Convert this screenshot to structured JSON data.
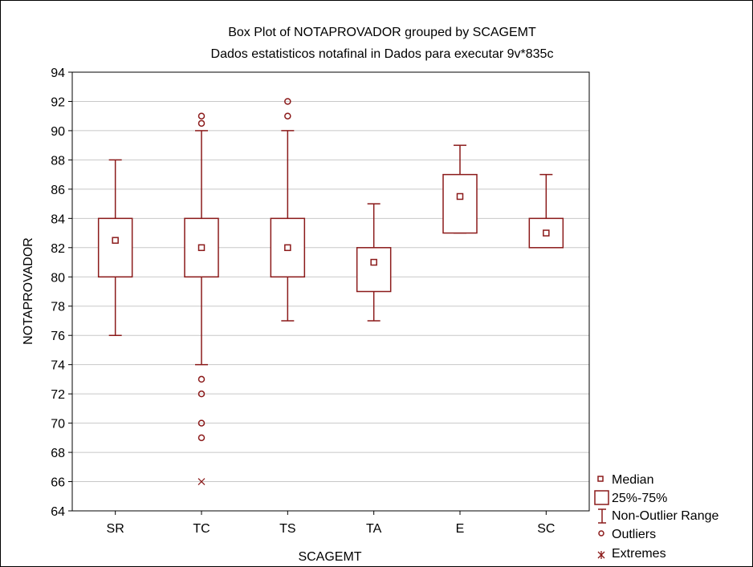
{
  "chart_data": {
    "type": "box",
    "title": "Box Plot of NOTAPROVADOR grouped by  SCAGEMT",
    "subtitle": "Dados estatisticos notafinal in Dados para executar 9v*835c",
    "xlabel": "SCAGEMT",
    "ylabel": "NOTAPROVADOR",
    "ylim": [
      64,
      94
    ],
    "yticks": [
      "94",
      "92",
      "90",
      "88",
      "86",
      "84",
      "82",
      "80",
      "78",
      "76",
      "74",
      "72",
      "70",
      "68",
      "66",
      "64"
    ],
    "grid": true,
    "legend_position": "bottom-right",
    "categories": [
      "SR",
      "TC",
      "TS",
      "TA",
      "E",
      "SC"
    ],
    "boxes": [
      {
        "category": "SR",
        "median": 82.5,
        "q1": 80,
        "q3": 84,
        "whisker_low": 76,
        "whisker_high": 88,
        "outliers": [],
        "extremes": []
      },
      {
        "category": "TC",
        "median": 82,
        "q1": 80,
        "q3": 84,
        "whisker_low": 74,
        "whisker_high": 90,
        "outliers": [
          91,
          90.5,
          73,
          72,
          70,
          69
        ],
        "extremes": [
          66
        ]
      },
      {
        "category": "TS",
        "median": 82,
        "q1": 80,
        "q3": 84,
        "whisker_low": 77,
        "whisker_high": 90,
        "outliers": [
          92,
          91
        ],
        "extremes": []
      },
      {
        "category": "TA",
        "median": 81,
        "q1": 79,
        "q3": 82,
        "whisker_low": 77,
        "whisker_high": 85,
        "outliers": [],
        "extremes": []
      },
      {
        "category": "E",
        "median": 85.5,
        "q1": 83,
        "q3": 87,
        "whisker_low": 83,
        "whisker_high": 89,
        "outliers": [],
        "extremes": []
      },
      {
        "category": "SC",
        "median": 83,
        "q1": 82,
        "q3": 84,
        "whisker_low": 82,
        "whisker_high": 87,
        "outliers": [],
        "extremes": []
      }
    ],
    "legend": {
      "median": "Median",
      "box": "25%-75%",
      "range": "Non-Outlier Range",
      "outliers": "Outliers",
      "extremes": "Extremes"
    },
    "colors": {
      "mark": "#8b1a1a",
      "grid": "#c8c8c8",
      "axis": "#000000"
    }
  }
}
